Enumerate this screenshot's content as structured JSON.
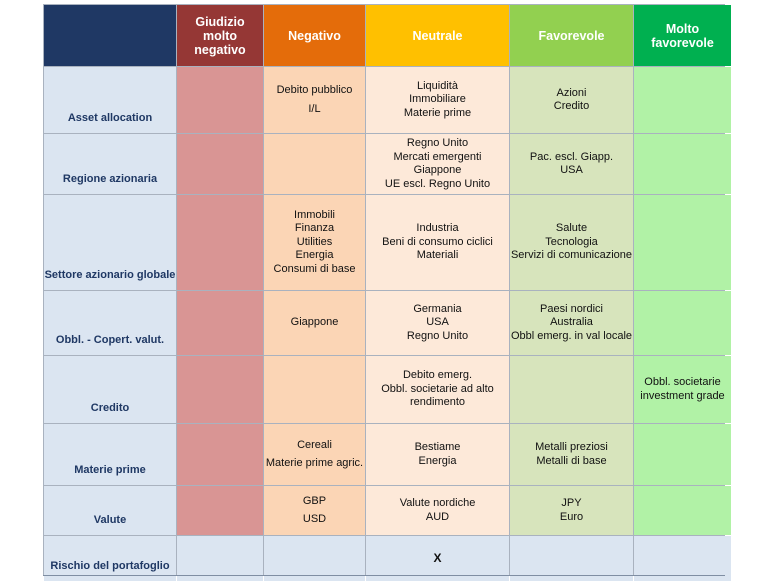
{
  "headers": {
    "very_negative": "Giudizio molto negativo",
    "negative": "Negativo",
    "neutral": "Neutrale",
    "favorable": "Favorevole",
    "very_favorable": "Molto favorevole"
  },
  "rows": [
    {
      "label": "Asset allocation",
      "negative": [
        "Debito pubblico",
        "I/L"
      ],
      "neutral": [
        "Liquidità",
        "Immobiliare",
        "Materie prime"
      ],
      "favorable": [
        "Azioni",
        "Credito"
      ],
      "very_favorable": []
    },
    {
      "label": "Regione azionaria",
      "negative": [],
      "neutral": [
        "Regno Unito",
        "Mercati emergenti",
        "Giappone",
        "UE escl. Regno Unito"
      ],
      "favorable": [
        "Pac. escl. Giapp.",
        "USA"
      ],
      "very_favorable": []
    },
    {
      "label": "Settore azionario globale",
      "negative": [
        "Immobili",
        "Finanza",
        "Utilities",
        "Energia",
        "Consumi di base"
      ],
      "neutral": [
        "Industria",
        "Beni di consumo ciclici",
        "Materiali"
      ],
      "favorable": [
        "Salute",
        "Tecnologia",
        "Servizi di comunicazione"
      ],
      "very_favorable": []
    },
    {
      "label": "Obbl. - Copert. valut.",
      "negative": [
        "Giappone"
      ],
      "neutral": [
        "Germania",
        "USA",
        "Regno Unito"
      ],
      "favorable": [
        "Paesi nordici",
        "Australia",
        "Obbl emerg. in val locale"
      ],
      "very_favorable": []
    },
    {
      "label": "Credito",
      "negative": [],
      "neutral": [
        "Debito emerg.",
        "Obbl. societarie ad alto rendimento"
      ],
      "favorable": [],
      "very_favorable": [
        "Obbl. societarie investment grade"
      ]
    },
    {
      "label": "Materie prime",
      "negative": [
        "Cereali",
        "Materie prime agric."
      ],
      "neutral": [
        "Bestiame",
        "Energia"
      ],
      "favorable": [
        "Metalli preziosi",
        "Metalli di base"
      ],
      "very_favorable": []
    },
    {
      "label": "Valute",
      "negative": [
        "GBP",
        "USD"
      ],
      "neutral": [
        "Valute nordiche",
        "AUD"
      ],
      "favorable": [
        "JPY",
        "Euro"
      ],
      "very_favorable": []
    },
    {
      "label": "Rischio del portafoglio",
      "negative": [],
      "neutral": [
        "X"
      ],
      "favorable": [],
      "very_favorable": []
    }
  ],
  "colors": {
    "header_label": "#1f3864",
    "very_negative": "#953735",
    "negative": "#e46c0a",
    "neutral": "#ffc000",
    "favorable": "#92d050",
    "very_favorable": "#00b050"
  }
}
